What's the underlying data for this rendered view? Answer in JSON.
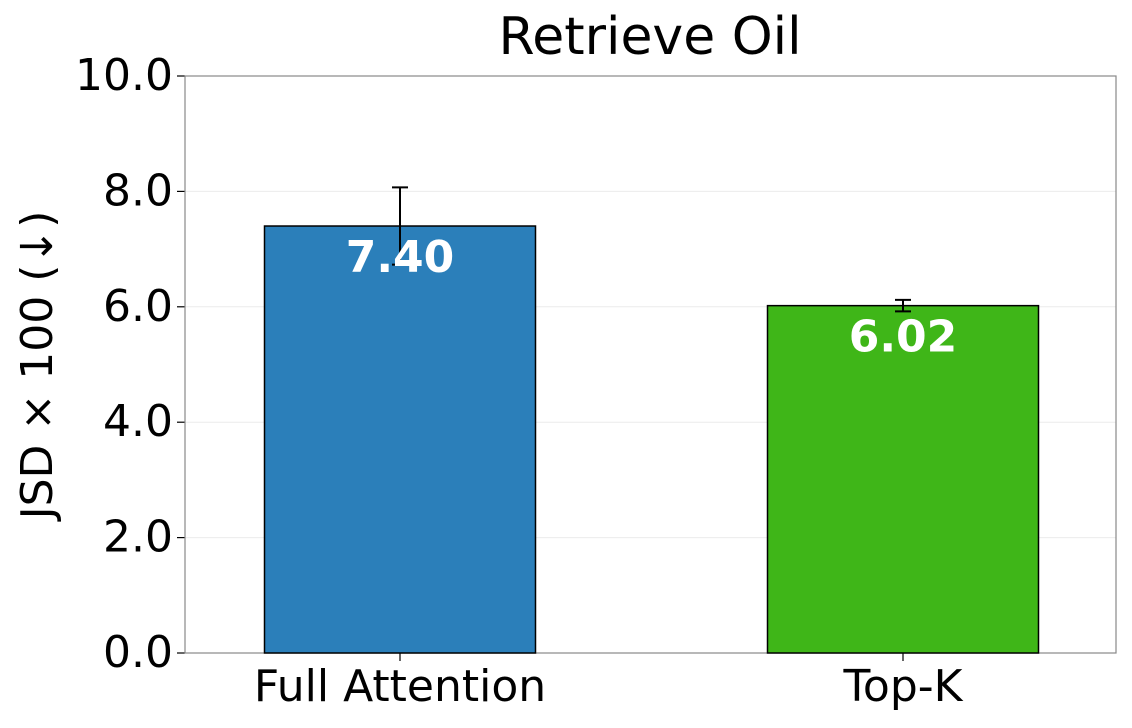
{
  "chart_data": {
    "type": "bar",
    "title": "Retrieve Oil",
    "y_label": "JSD × 100 (↓)",
    "categories": [
      "Full Attention",
      "Top-K"
    ],
    "values": [
      7.4,
      6.02
    ],
    "value_labels": [
      "7.40",
      "6.02"
    ],
    "errors": [
      0.67,
      0.1
    ],
    "colors": [
      "#2b7fba",
      "#3fb618"
    ],
    "ylim": [
      0,
      10
    ],
    "yticks": [
      {
        "value": 0,
        "label": "0.0"
      },
      {
        "value": 2,
        "label": "2.0"
      },
      {
        "value": 4,
        "label": "4.0"
      },
      {
        "value": 6,
        "label": "6.0"
      },
      {
        "value": 8,
        "label": "8.0"
      },
      {
        "value": 10,
        "label": "10.0"
      }
    ],
    "grid": true
  }
}
